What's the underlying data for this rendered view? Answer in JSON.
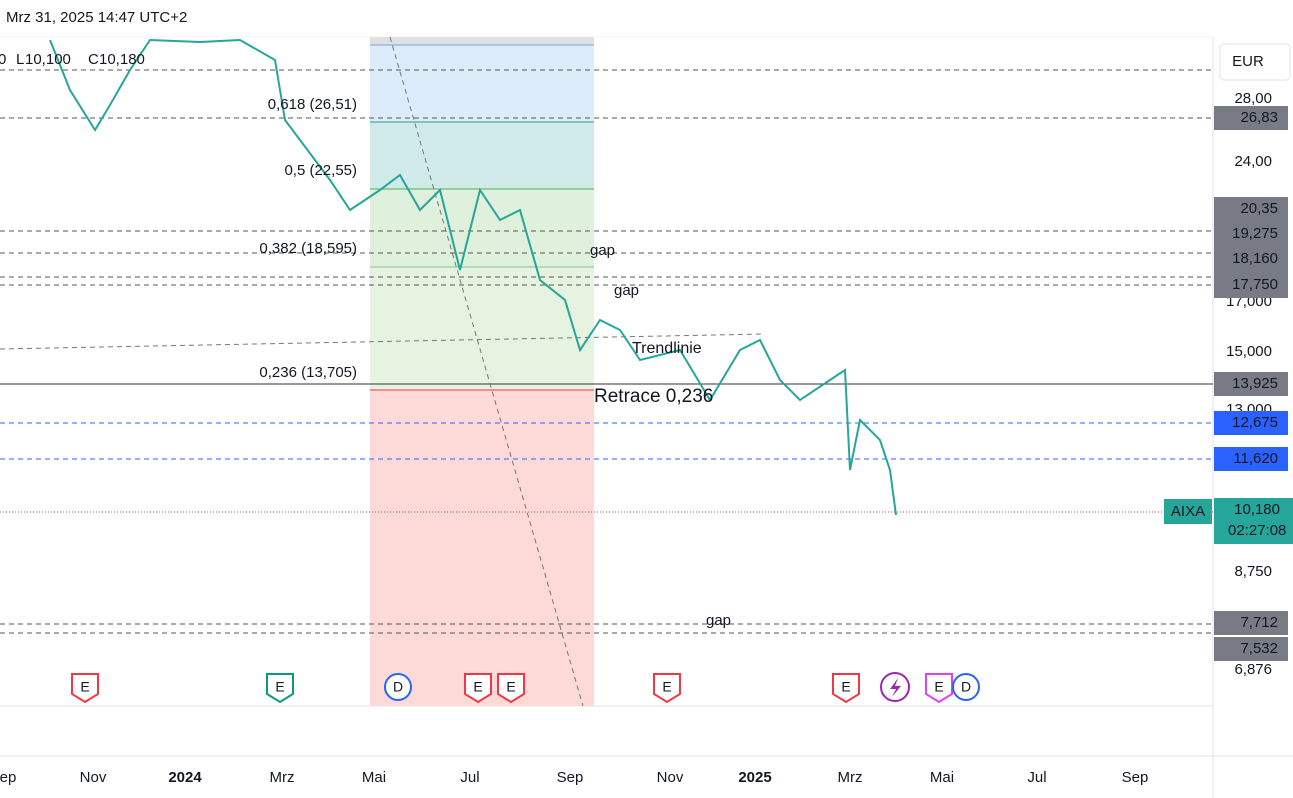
{
  "header": {
    "datetime": "Mrz 31, 2025 14:47 UTC+2",
    "ohlc": [
      "0",
      "L",
      "10,100",
      "C",
      "10,180"
    ]
  },
  "currency": "EUR",
  "price_axis": [
    "28,00",
    "24,00",
    "17,000",
    "15,000",
    "13,000",
    "8,750",
    "6,876"
  ],
  "price_tags": [
    "26,83",
    "20,35",
    "19,275",
    "18,160",
    "17,750",
    "13,925",
    "12,675",
    "11,620",
    "7,712",
    "7,532"
  ],
  "symbol": {
    "name": "AIXA",
    "price": "10,180",
    "countdown": "02:27:08"
  },
  "fib_levels": [
    "0,618 (26,51)",
    "0,5 (22,55)",
    "0,382 (18,595)",
    "0,236 (13,705)"
  ],
  "annotations": [
    "gap",
    "gap",
    "gap",
    "Trendlinie",
    "Retrace 0,236"
  ],
  "events": [
    "E",
    "E",
    "D",
    "E",
    "E",
    "E",
    "E",
    "E",
    "D"
  ],
  "time_axis": [
    "Sep",
    "Nov",
    "2024",
    "Mrz",
    "Mai",
    "Jul",
    "Sep",
    "Nov",
    "2025",
    "Mrz",
    "Mai",
    "Jul",
    "Sep"
  ]
}
